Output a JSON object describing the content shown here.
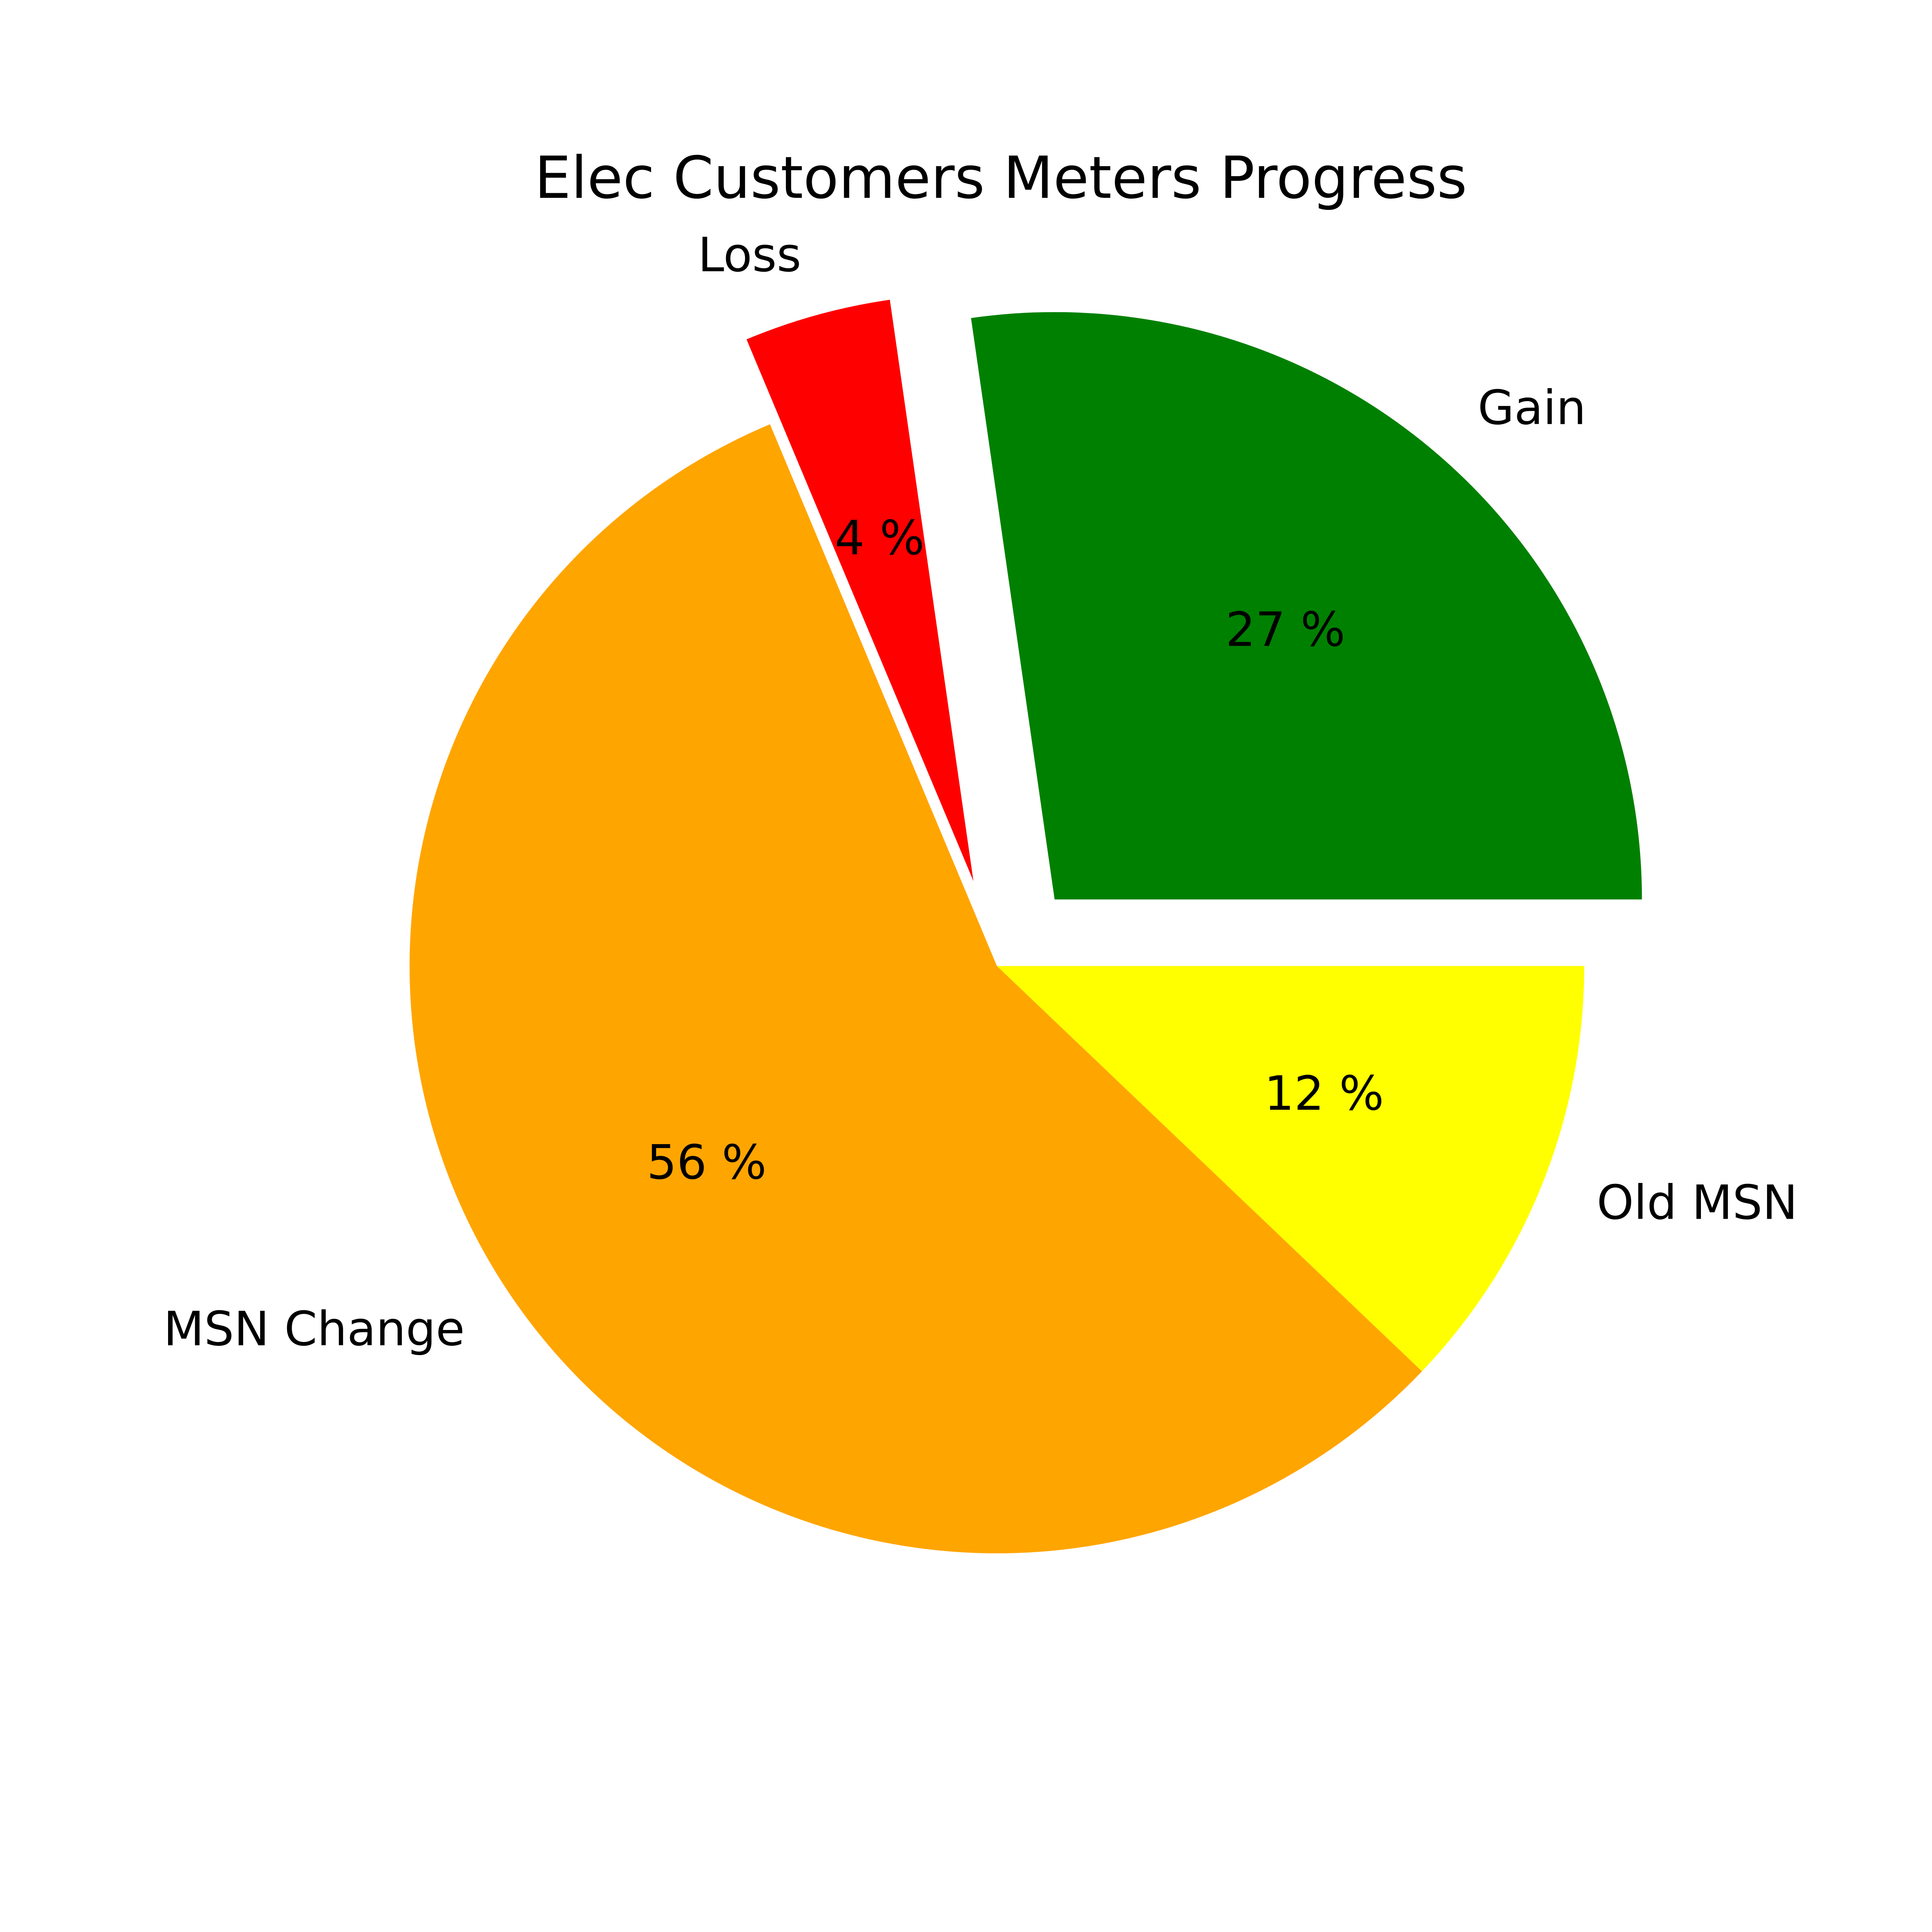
{
  "chart_data": {
    "type": "pie",
    "title": "Elec Customers Meters Progress",
    "slices": [
      {
        "label": "Gain",
        "value": 27,
        "value_label": "27 %",
        "color": "#008000",
        "exploded": true
      },
      {
        "label": "Loss",
        "value": 4,
        "value_label": "4 %",
        "color": "#ff0000",
        "exploded": true
      },
      {
        "label": "MSN Change",
        "value": 56,
        "value_label": "56 %",
        "color": "#ffa500",
        "exploded": false
      },
      {
        "label": "Old MSN",
        "value": 12,
        "value_label": "12 %",
        "color": "#ffff00",
        "exploded": false
      }
    ]
  }
}
